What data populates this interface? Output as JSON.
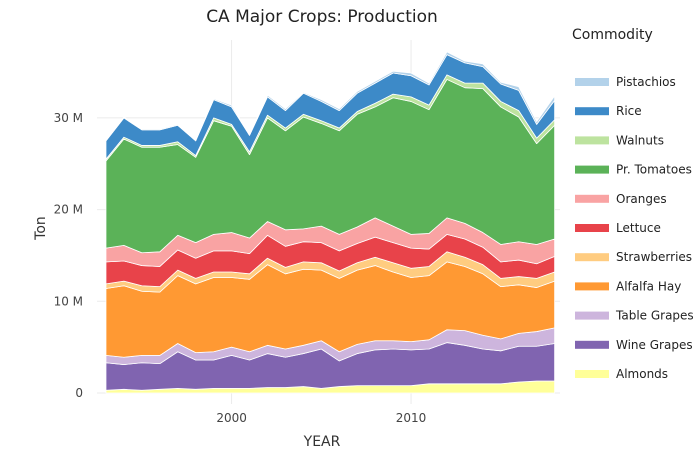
{
  "chart_data": {
    "type": "area",
    "stacked": true,
    "title": "CA Major Crops:  Production",
    "xlabel": "YEAR",
    "ylabel": "Ton",
    "xlim": [
      1992.5,
      2018.3
    ],
    "ylim": [
      -1.2,
      38.5
    ],
    "x_ticks": [
      2000,
      2010
    ],
    "y_ticks": [
      {
        "value": 0,
        "label": "0"
      },
      {
        "value": 10,
        "label": "10 M"
      },
      {
        "value": 20,
        "label": "20 M"
      },
      {
        "value": 30,
        "label": "30 M"
      }
    ],
    "y_unit": "million tons",
    "grid": true,
    "legend_title": "Commodity",
    "legend_position": "right",
    "x": [
      1993,
      1994,
      1995,
      1996,
      1997,
      1998,
      1999,
      2000,
      2001,
      2002,
      2003,
      2004,
      2005,
      2006,
      2007,
      2008,
      2009,
      2010,
      2011,
      2012,
      2013,
      2014,
      2015,
      2016,
      2017,
      2018
    ],
    "series": [
      {
        "name": "Almonds",
        "color": "#ffff99",
        "values": [
          0.3,
          0.4,
          0.3,
          0.4,
          0.5,
          0.4,
          0.5,
          0.5,
          0.5,
          0.6,
          0.6,
          0.7,
          0.5,
          0.7,
          0.8,
          0.8,
          0.8,
          0.8,
          1.0,
          1.0,
          1.0,
          1.0,
          1.0,
          1.2,
          1.3,
          1.3
        ]
      },
      {
        "name": "Wine Grapes",
        "color": "#8064b0",
        "values": [
          3.0,
          2.7,
          3.0,
          2.8,
          4.0,
          3.2,
          3.1,
          3.6,
          3.1,
          3.7,
          3.3,
          3.6,
          4.3,
          2.8,
          3.5,
          3.9,
          4.0,
          3.9,
          3.8,
          4.5,
          4.2,
          3.8,
          3.6,
          3.9,
          3.8,
          4.1
        ]
      },
      {
        "name": "Table Grapes",
        "color": "#cdb5dd",
        "values": [
          0.8,
          0.8,
          0.8,
          0.9,
          0.9,
          0.8,
          0.9,
          0.9,
          0.9,
          0.9,
          0.9,
          0.9,
          0.9,
          1.0,
          1.0,
          1.0,
          0.9,
          0.9,
          1.0,
          1.4,
          1.6,
          1.5,
          1.3,
          1.4,
          1.6,
          1.7
        ]
      },
      {
        "name": "Alfalfa Hay",
        "color": "#ff9933",
        "values": [
          7.3,
          7.8,
          7.0,
          6.9,
          7.4,
          7.5,
          8.1,
          7.6,
          7.9,
          8.8,
          8.2,
          8.3,
          7.7,
          8.0,
          8.1,
          8.2,
          7.5,
          7.0,
          7.0,
          7.4,
          7.0,
          6.7,
          5.7,
          5.3,
          4.8,
          5.1
        ]
      },
      {
        "name": "Strawberries",
        "color": "#ffcc80",
        "values": [
          0.5,
          0.5,
          0.6,
          0.6,
          0.6,
          0.6,
          0.6,
          0.6,
          0.6,
          0.7,
          0.7,
          0.8,
          0.8,
          0.8,
          0.8,
          0.9,
          1.0,
          1.0,
          1.0,
          1.1,
          1.0,
          1.0,
          0.9,
          0.9,
          1.0,
          1.0
        ]
      },
      {
        "name": "Lettuce",
        "color": "#e8434a",
        "values": [
          2.4,
          2.2,
          2.2,
          2.2,
          2.2,
          2.2,
          2.3,
          2.3,
          2.2,
          2.5,
          2.3,
          2.2,
          2.2,
          2.2,
          2.1,
          2.2,
          2.2,
          2.2,
          1.9,
          1.9,
          2.0,
          1.9,
          1.8,
          1.8,
          1.6,
          1.7
        ]
      },
      {
        "name": "Oranges",
        "color": "#f9a3a3",
        "values": [
          1.5,
          1.7,
          1.4,
          1.6,
          1.6,
          1.7,
          1.8,
          2.0,
          1.7,
          1.5,
          1.8,
          1.4,
          1.8,
          1.8,
          1.8,
          2.1,
          1.8,
          1.5,
          1.7,
          1.8,
          1.7,
          1.6,
          1.9,
          2.0,
          2.1,
          1.9
        ]
      },
      {
        "name": "Pr. Tomatoes",
        "color": "#5bb258",
        "values": [
          9.5,
          11.6,
          11.5,
          11.4,
          9.9,
          9.3,
          12.4,
          11.6,
          9.1,
          11.3,
          10.8,
          12.2,
          11.2,
          11.3,
          12.3,
          12.1,
          14.0,
          14.5,
          13.5,
          15.1,
          14.8,
          15.7,
          15.0,
          13.6,
          11.0,
          12.4
        ]
      },
      {
        "name": "Walnuts",
        "color": "#bde39f",
        "values": [
          0.2,
          0.2,
          0.2,
          0.2,
          0.3,
          0.2,
          0.3,
          0.2,
          0.3,
          0.3,
          0.3,
          0.3,
          0.3,
          0.3,
          0.3,
          0.4,
          0.4,
          0.5,
          0.5,
          0.5,
          0.5,
          0.6,
          0.6,
          0.7,
          0.6,
          0.6
        ]
      },
      {
        "name": "Rice",
        "color": "#3d8ac8",
        "values": [
          2.0,
          2.1,
          1.7,
          1.7,
          1.8,
          1.6,
          2.0,
          1.9,
          1.8,
          2.0,
          1.9,
          2.3,
          2.1,
          1.9,
          2.0,
          2.2,
          2.3,
          2.3,
          2.2,
          2.2,
          2.2,
          1.8,
          1.9,
          2.2,
          1.5,
          2.1
        ]
      },
      {
        "name": "Pistachios",
        "color": "#b3d2ea",
        "values": [
          0.1,
          0.1,
          0.1,
          0.1,
          0.1,
          0.1,
          0.1,
          0.2,
          0.1,
          0.2,
          0.2,
          0.1,
          0.2,
          0.2,
          0.2,
          0.2,
          0.2,
          0.3,
          0.2,
          0.3,
          0.2,
          0.3,
          0.2,
          0.4,
          0.3,
          0.5
        ]
      }
    ]
  }
}
